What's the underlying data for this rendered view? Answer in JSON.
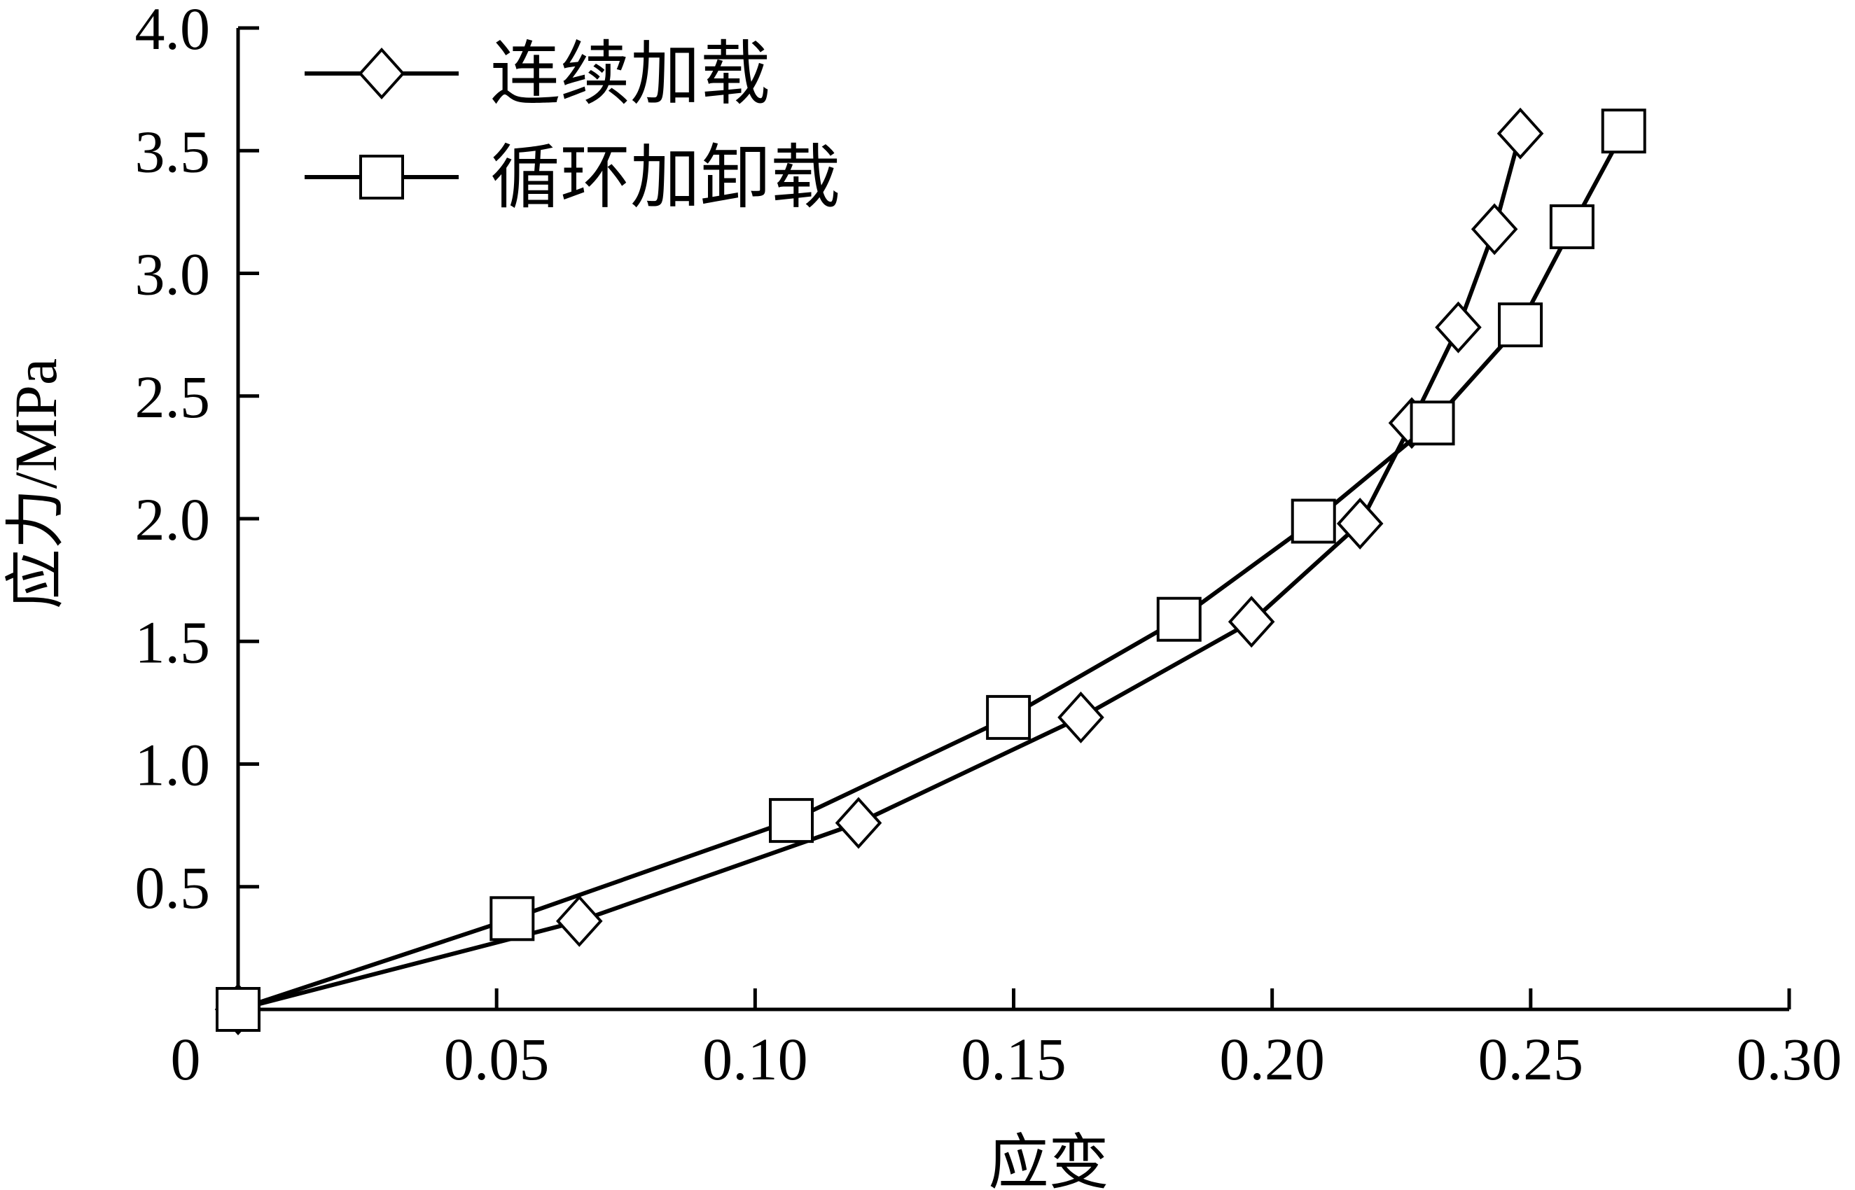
{
  "chart_data": {
    "type": "line",
    "title": "",
    "xlabel": "应变",
    "ylabel": "应力/MPa",
    "xlim": [
      0,
      0.3
    ],
    "ylim": [
      0,
      4.0
    ],
    "x_ticks": [
      "0",
      "0.05",
      "0.10",
      "0.15",
      "0.20",
      "0.25",
      "0.30"
    ],
    "x_tick_values": [
      0,
      0.05,
      0.1,
      0.15,
      0.2,
      0.25,
      0.3
    ],
    "y_ticks": [
      "0.5",
      "1.0",
      "1.5",
      "2.0",
      "2.5",
      "3.0",
      "3.5",
      "4.0"
    ],
    "y_tick_values": [
      0.5,
      1.0,
      1.5,
      2.0,
      2.5,
      3.0,
      3.5,
      4.0
    ],
    "grid": false,
    "legend_position": "top-left",
    "series": [
      {
        "name": "连续加载",
        "marker": "diamond",
        "color": "#000000",
        "x": [
          0,
          0.066,
          0.12,
          0.163,
          0.196,
          0.217,
          0.227,
          0.236,
          0.243,
          0.248
        ],
        "y": [
          0,
          0.36,
          0.76,
          1.19,
          1.58,
          1.98,
          2.39,
          2.78,
          3.18,
          3.57
        ]
      },
      {
        "name": "循环加卸载",
        "marker": "square",
        "color": "#000000",
        "x": [
          0,
          0.053,
          0.107,
          0.149,
          0.182,
          0.208,
          0.231,
          0.248,
          0.258,
          0.268
        ],
        "y": [
          0,
          0.37,
          0.77,
          1.19,
          1.59,
          1.99,
          2.39,
          2.79,
          3.19,
          3.58
        ]
      }
    ]
  }
}
